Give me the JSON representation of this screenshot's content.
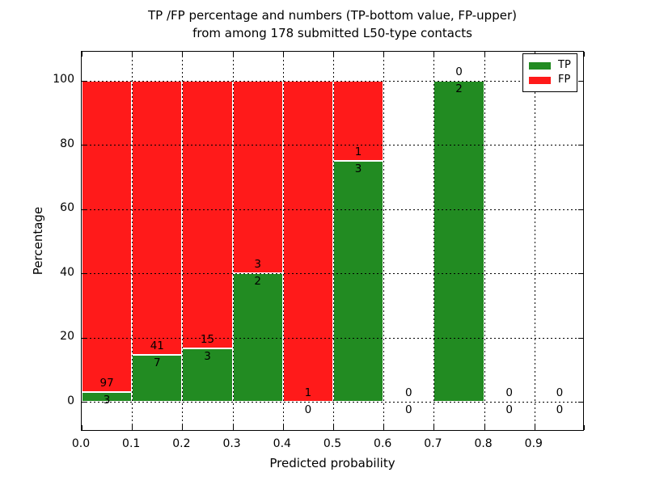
{
  "chart_data": {
    "type": "bar",
    "stacked": true,
    "title_line1": "TP /FP percentage and numbers (TP-bottom value, FP-upper)",
    "title_line2": "from among 178 submitted L50-type contacts",
    "xlabel": "Predicted probability",
    "ylabel": "Percentage",
    "x_tick_labels": [
      "0.0",
      "0.1",
      "0.2",
      "0.3",
      "0.4",
      "0.5",
      "0.6",
      "0.7",
      "0.8",
      "0.9"
    ],
    "y_ticks": [
      0,
      20,
      40,
      60,
      80,
      100
    ],
    "xlim": [
      0.0,
      1.0
    ],
    "ylim": [
      -9.3,
      109.0
    ],
    "grid": "dotted",
    "legend": {
      "position": "upper-right",
      "entries": [
        {
          "label": "TP",
          "color": "#228b22"
        },
        {
          "label": "FP",
          "color": "#ff1a1a"
        }
      ]
    },
    "bins": [
      {
        "x_range": [
          0.0,
          0.1
        ],
        "tp_count": 3,
        "fp_count": 97,
        "tp_pct": 3.0,
        "fp_pct": 97.0
      },
      {
        "x_range": [
          0.1,
          0.2
        ],
        "tp_count": 7,
        "fp_count": 41,
        "tp_pct": 14.58,
        "fp_pct": 85.42
      },
      {
        "x_range": [
          0.2,
          0.3
        ],
        "tp_count": 3,
        "fp_count": 15,
        "tp_pct": 16.67,
        "fp_pct": 83.33
      },
      {
        "x_range": [
          0.3,
          0.4
        ],
        "tp_count": 2,
        "fp_count": 3,
        "tp_pct": 40.0,
        "fp_pct": 60.0
      },
      {
        "x_range": [
          0.4,
          0.5
        ],
        "tp_count": 0,
        "fp_count": 1,
        "tp_pct": 0.0,
        "fp_pct": 100.0
      },
      {
        "x_range": [
          0.5,
          0.6
        ],
        "tp_count": 3,
        "fp_count": 1,
        "tp_pct": 75.0,
        "fp_pct": 25.0
      },
      {
        "x_range": [
          0.6,
          0.7
        ],
        "tp_count": 0,
        "fp_count": 0,
        "tp_pct": 0.0,
        "fp_pct": 0.0
      },
      {
        "x_range": [
          0.7,
          0.8
        ],
        "tp_count": 2,
        "fp_count": 0,
        "tp_pct": 100.0,
        "fp_pct": 0.0
      },
      {
        "x_range": [
          0.8,
          0.9
        ],
        "tp_count": 0,
        "fp_count": 0,
        "tp_pct": 0.0,
        "fp_pct": 0.0
      },
      {
        "x_range": [
          0.9,
          1.0
        ],
        "tp_count": 0,
        "fp_count": 0,
        "tp_pct": 0.0,
        "fp_pct": 0.0
      }
    ]
  }
}
